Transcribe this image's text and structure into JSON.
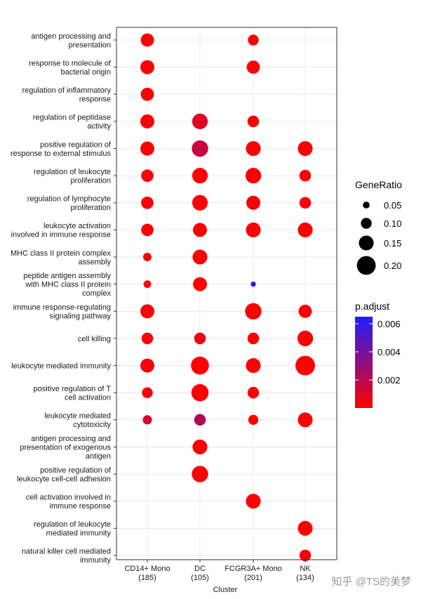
{
  "chart_data": {
    "type": "scatter",
    "xlabel": "Cluster",
    "x_categories": [
      {
        "name": "CD14+ Mono",
        "count": "(185)"
      },
      {
        "name": "DC",
        "count": "(105)"
      },
      {
        "name": "FCGR3A+ Mono",
        "count": "(201)"
      },
      {
        "name": "NK",
        "count": "(134)"
      }
    ],
    "y_categories": [
      [
        "antigen processing and",
        "presentation"
      ],
      [
        "response to molecule of",
        "bacterial origin"
      ],
      [
        "regulation of inflammatory",
        "response"
      ],
      [
        "regulation of peptidase",
        "activity"
      ],
      [
        "positive regulation of",
        "response to external stimulus"
      ],
      [
        "regulation of leukocyte",
        "proliferation"
      ],
      [
        "regulation of lymphocyte",
        "proliferation"
      ],
      [
        "leukocyte activation",
        "involved in immune response"
      ],
      [
        "MHC class II protein complex",
        "assembly"
      ],
      [
        "peptide antigen assembly",
        "with MHC class II protein",
        "complex"
      ],
      [
        "immune response-regulating",
        "signaling pathway"
      ],
      [
        "cell killing"
      ],
      [
        "leukocyte mediated immunity"
      ],
      [
        "positive regulation of T",
        "cell activation"
      ],
      [
        "leukocyte mediated",
        "cytotoxicity"
      ],
      [
        "antigen processing and",
        "presentation of exogenous",
        "antigen"
      ],
      [
        "positive regulation of",
        "leukocyte cell-cell adhesion"
      ],
      [
        "cell activation involved in",
        "immune response"
      ],
      [
        "regulation of leukocyte",
        "mediated immunity"
      ],
      [
        "natural killer cell mediated",
        "immunity"
      ]
    ],
    "points": [
      {
        "x": 0,
        "y": 0,
        "gene_ratio": 0.13,
        "p_adjust": 0.0001
      },
      {
        "x": 2,
        "y": 0,
        "gene_ratio": 0.1,
        "p_adjust": 0.0001
      },
      {
        "x": 0,
        "y": 1,
        "gene_ratio": 0.14,
        "p_adjust": 0.0001
      },
      {
        "x": 2,
        "y": 1,
        "gene_ratio": 0.13,
        "p_adjust": 0.0001
      },
      {
        "x": 0,
        "y": 2,
        "gene_ratio": 0.13,
        "p_adjust": 0.0001
      },
      {
        "x": 0,
        "y": 3,
        "gene_ratio": 0.14,
        "p_adjust": 0.0001
      },
      {
        "x": 1,
        "y": 3,
        "gene_ratio": 0.16,
        "p_adjust": 0.0009
      },
      {
        "x": 2,
        "y": 3,
        "gene_ratio": 0.11,
        "p_adjust": 0.0001
      },
      {
        "x": 0,
        "y": 4,
        "gene_ratio": 0.14,
        "p_adjust": 0.0001
      },
      {
        "x": 1,
        "y": 4,
        "gene_ratio": 0.17,
        "p_adjust": 0.0016
      },
      {
        "x": 2,
        "y": 4,
        "gene_ratio": 0.15,
        "p_adjust": 0.0001
      },
      {
        "x": 3,
        "y": 4,
        "gene_ratio": 0.15,
        "p_adjust": 0.0001
      },
      {
        "x": 0,
        "y": 5,
        "gene_ratio": 0.12,
        "p_adjust": 0.0001
      },
      {
        "x": 1,
        "y": 5,
        "gene_ratio": 0.16,
        "p_adjust": 0.0001
      },
      {
        "x": 2,
        "y": 5,
        "gene_ratio": 0.16,
        "p_adjust": 0.0001
      },
      {
        "x": 3,
        "y": 5,
        "gene_ratio": 0.11,
        "p_adjust": 0.0001
      },
      {
        "x": 0,
        "y": 6,
        "gene_ratio": 0.12,
        "p_adjust": 0.0001
      },
      {
        "x": 1,
        "y": 6,
        "gene_ratio": 0.16,
        "p_adjust": 0.0001
      },
      {
        "x": 2,
        "y": 6,
        "gene_ratio": 0.14,
        "p_adjust": 0.0001
      },
      {
        "x": 3,
        "y": 6,
        "gene_ratio": 0.11,
        "p_adjust": 0.0001
      },
      {
        "x": 0,
        "y": 7,
        "gene_ratio": 0.12,
        "p_adjust": 0.0001
      },
      {
        "x": 1,
        "y": 7,
        "gene_ratio": 0.14,
        "p_adjust": 0.0001
      },
      {
        "x": 2,
        "y": 7,
        "gene_ratio": 0.15,
        "p_adjust": 0.0001
      },
      {
        "x": 3,
        "y": 7,
        "gene_ratio": 0.15,
        "p_adjust": 0.0001
      },
      {
        "x": 0,
        "y": 8,
        "gene_ratio": 0.07,
        "p_adjust": 0.0001
      },
      {
        "x": 1,
        "y": 8,
        "gene_ratio": 0.15,
        "p_adjust": 0.0001
      },
      {
        "x": 0,
        "y": 9,
        "gene_ratio": 0.06,
        "p_adjust": 0.0001
      },
      {
        "x": 1,
        "y": 9,
        "gene_ratio": 0.14,
        "p_adjust": 0.0001
      },
      {
        "x": 2,
        "y": 9,
        "gene_ratio": 0.03,
        "p_adjust": 0.0062
      },
      {
        "x": 0,
        "y": 10,
        "gene_ratio": 0.14,
        "p_adjust": 0.0001
      },
      {
        "x": 2,
        "y": 10,
        "gene_ratio": 0.17,
        "p_adjust": 0.0001
      },
      {
        "x": 3,
        "y": 10,
        "gene_ratio": 0.13,
        "p_adjust": 0.0001
      },
      {
        "x": 0,
        "y": 11,
        "gene_ratio": 0.11,
        "p_adjust": 0.0001
      },
      {
        "x": 1,
        "y": 11,
        "gene_ratio": 0.11,
        "p_adjust": 0.0005
      },
      {
        "x": 2,
        "y": 11,
        "gene_ratio": 0.11,
        "p_adjust": 0.0001
      },
      {
        "x": 3,
        "y": 11,
        "gene_ratio": 0.16,
        "p_adjust": 0.0001
      },
      {
        "x": 0,
        "y": 12,
        "gene_ratio": 0.14,
        "p_adjust": 0.0002
      },
      {
        "x": 1,
        "y": 12,
        "gene_ratio": 0.19,
        "p_adjust": 0.0001
      },
      {
        "x": 2,
        "y": 12,
        "gene_ratio": 0.15,
        "p_adjust": 0.0001
      },
      {
        "x": 3,
        "y": 12,
        "gene_ratio": 0.21,
        "p_adjust": 0.0001
      },
      {
        "x": 0,
        "y": 13,
        "gene_ratio": 0.1,
        "p_adjust": 0.0003
      },
      {
        "x": 1,
        "y": 13,
        "gene_ratio": 0.18,
        "p_adjust": 0.0001
      },
      {
        "x": 2,
        "y": 13,
        "gene_ratio": 0.11,
        "p_adjust": 0.0001
      },
      {
        "x": 0,
        "y": 14,
        "gene_ratio": 0.08,
        "p_adjust": 0.0012
      },
      {
        "x": 1,
        "y": 14,
        "gene_ratio": 0.11,
        "p_adjust": 0.0021
      },
      {
        "x": 2,
        "y": 14,
        "gene_ratio": 0.09,
        "p_adjust": 0.0001
      },
      {
        "x": 3,
        "y": 14,
        "gene_ratio": 0.15,
        "p_adjust": 0.0001
      },
      {
        "x": 1,
        "y": 15,
        "gene_ratio": 0.15,
        "p_adjust": 0.0001
      },
      {
        "x": 1,
        "y": 16,
        "gene_ratio": 0.17,
        "p_adjust": 0.0001
      },
      {
        "x": 2,
        "y": 17,
        "gene_ratio": 0.15,
        "p_adjust": 0.0001
      },
      {
        "x": 3,
        "y": 18,
        "gene_ratio": 0.15,
        "p_adjust": 0.0001
      },
      {
        "x": 3,
        "y": 19,
        "gene_ratio": 0.11,
        "p_adjust": 0.0001
      }
    ],
    "size_legend": {
      "title": "GeneRatio",
      "values": [
        0.05,
        0.1,
        0.15,
        0.2
      ],
      "labels": [
        "0.05",
        "0.10",
        "0.15",
        "0.20"
      ]
    },
    "color_legend": {
      "title": "p.adjust",
      "range": [
        0.0,
        0.0065
      ],
      "ticks": [
        0.002,
        0.004,
        0.006
      ],
      "labels": [
        "0.002",
        "0.004",
        "0.006"
      ],
      "low_color": "#ff0000",
      "high_color": "#1e1eff"
    },
    "grid": true,
    "legend_position": "right"
  },
  "watermark": "知乎 @TS的美梦"
}
